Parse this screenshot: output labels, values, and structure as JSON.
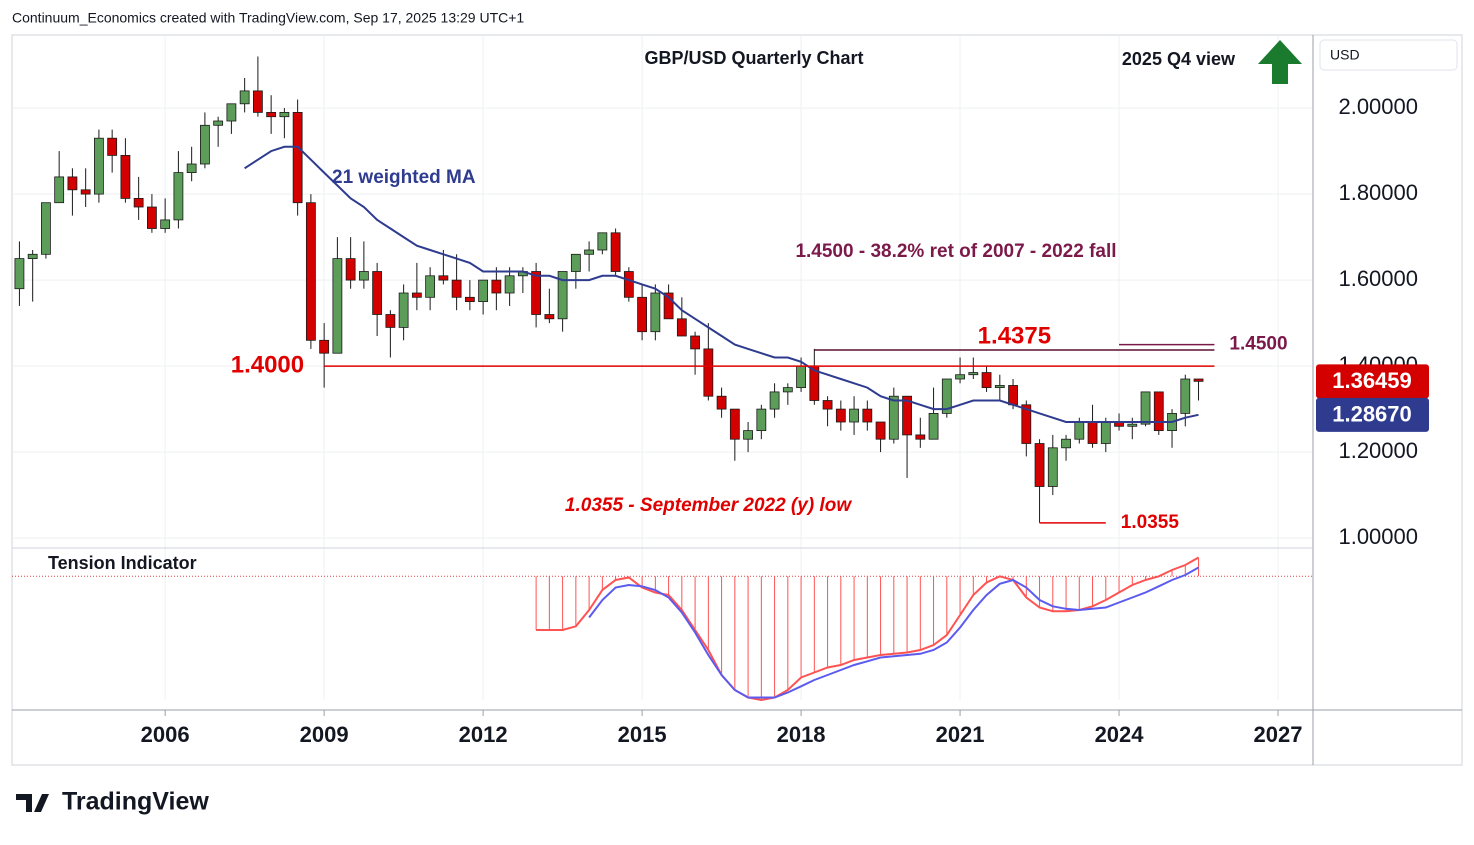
{
  "header": "Continuum_Economics created with TradingView.com, Sep 17, 2025 13:29 UTC+1",
  "brand": "TradingView",
  "chart_data": {
    "type": "candlestick",
    "title": "GBP/USD Quarterly Chart",
    "subtitle": "2025 Q4 view",
    "currency": "USD",
    "x": [
      2003.25,
      2003.5,
      2003.75,
      2004,
      2004.25,
      2004.5,
      2004.75,
      2005,
      2005.25,
      2005.5,
      2005.75,
      2006,
      2006.25,
      2006.5,
      2006.75,
      2007,
      2007.25,
      2007.5,
      2007.75,
      2008,
      2008.25,
      2008.5,
      2008.75,
      2009,
      2009.25,
      2009.5,
      2009.75,
      2010,
      2010.25,
      2010.5,
      2010.75,
      2011,
      2011.25,
      2011.5,
      2011.75,
      2012,
      2012.25,
      2012.5,
      2012.75,
      2013,
      2013.25,
      2013.5,
      2013.75,
      2014,
      2014.25,
      2014.5,
      2014.75,
      2015,
      2015.25,
      2015.5,
      2015.75,
      2016,
      2016.25,
      2016.5,
      2016.75,
      2017,
      2017.25,
      2017.5,
      2017.75,
      2018,
      2018.25,
      2018.5,
      2018.75,
      2019,
      2019.25,
      2019.5,
      2019.75,
      2020,
      2020.25,
      2020.5,
      2020.75,
      2021,
      2021.25,
      2021.5,
      2021.75,
      2022,
      2022.25,
      2022.5,
      2022.75,
      2023,
      2023.25,
      2023.5,
      2023.75,
      2024,
      2024.25,
      2024.5,
      2024.75,
      2025,
      2025.25,
      2025.5
    ],
    "open": [
      1.58,
      1.65,
      1.66,
      1.78,
      1.84,
      1.81,
      1.8,
      1.93,
      1.89,
      1.79,
      1.77,
      1.72,
      1.74,
      1.85,
      1.87,
      1.96,
      1.97,
      2.01,
      2.04,
      1.99,
      1.98,
      1.99,
      1.78,
      1.46,
      1.43,
      1.65,
      1.6,
      1.62,
      1.52,
      1.49,
      1.57,
      1.56,
      1.61,
      1.6,
      1.56,
      1.55,
      1.6,
      1.57,
      1.61,
      1.62,
      1.52,
      1.51,
      1.62,
      1.66,
      1.67,
      1.71,
      1.62,
      1.56,
      1.48,
      1.57,
      1.51,
      1.47,
      1.44,
      1.33,
      1.3,
      1.23,
      1.25,
      1.3,
      1.34,
      1.35,
      1.4,
      1.32,
      1.3,
      1.27,
      1.3,
      1.27,
      1.23,
      1.33,
      1.24,
      1.23,
      1.29,
      1.37,
      1.38,
      1.385,
      1.35,
      1.355,
      1.31,
      1.22,
      1.12,
      1.21,
      1.23,
      1.27,
      1.22,
      1.27,
      1.26,
      1.265,
      1.34,
      1.25,
      1.29,
      1.37
    ],
    "high": [
      1.69,
      1.67,
      1.78,
      1.9,
      1.86,
      1.86,
      1.95,
      1.95,
      1.93,
      1.84,
      1.8,
      1.79,
      1.9,
      1.91,
      1.99,
      1.98,
      2.01,
      2.07,
      2.12,
      2.03,
      2.0,
      2.02,
      1.8,
      1.5,
      1.7,
      1.7,
      1.69,
      1.64,
      1.53,
      1.59,
      1.64,
      1.63,
      1.67,
      1.66,
      1.6,
      1.6,
      1.63,
      1.63,
      1.63,
      1.64,
      1.58,
      1.62,
      1.66,
      1.69,
      1.71,
      1.72,
      1.63,
      1.59,
      1.59,
      1.59,
      1.56,
      1.48,
      1.5,
      1.35,
      1.3,
      1.27,
      1.31,
      1.36,
      1.36,
      1.42,
      1.44,
      1.33,
      1.32,
      1.33,
      1.32,
      1.27,
      1.35,
      1.33,
      1.28,
      1.35,
      1.37,
      1.42,
      1.42,
      1.4,
      1.38,
      1.37,
      1.32,
      1.23,
      1.24,
      1.24,
      1.28,
      1.31,
      1.28,
      1.29,
      1.28,
      1.34,
      1.34,
      1.3,
      1.38,
      1.37
    ],
    "low": [
      1.54,
      1.55,
      1.65,
      1.78,
      1.75,
      1.77,
      1.78,
      1.85,
      1.78,
      1.74,
      1.71,
      1.71,
      1.72,
      1.83,
      1.86,
      1.91,
      1.94,
      1.99,
      1.98,
      1.94,
      1.93,
      1.75,
      1.44,
      1.35,
      1.43,
      1.58,
      1.58,
      1.47,
      1.42,
      1.46,
      1.53,
      1.53,
      1.59,
      1.53,
      1.53,
      1.52,
      1.53,
      1.54,
      1.57,
      1.49,
      1.5,
      1.48,
      1.58,
      1.62,
      1.66,
      1.61,
      1.55,
      1.46,
      1.46,
      1.51,
      1.47,
      1.38,
      1.32,
      1.28,
      1.18,
      1.2,
      1.23,
      1.28,
      1.31,
      1.34,
      1.31,
      1.26,
      1.25,
      1.24,
      1.25,
      1.2,
      1.22,
      1.14,
      1.21,
      1.23,
      1.28,
      1.36,
      1.37,
      1.34,
      1.32,
      1.3,
      1.19,
      1.0355,
      1.1,
      1.18,
      1.22,
      1.21,
      1.2,
      1.25,
      1.23,
      1.26,
      1.24,
      1.21,
      1.26,
      1.32
    ],
    "close": [
      1.65,
      1.66,
      1.78,
      1.84,
      1.81,
      1.8,
      1.93,
      1.89,
      1.79,
      1.77,
      1.72,
      1.74,
      1.85,
      1.87,
      1.96,
      1.97,
      2.01,
      2.04,
      1.99,
      1.98,
      1.99,
      1.78,
      1.46,
      1.43,
      1.65,
      1.6,
      1.62,
      1.52,
      1.49,
      1.57,
      1.56,
      1.61,
      1.6,
      1.56,
      1.55,
      1.6,
      1.57,
      1.61,
      1.62,
      1.52,
      1.51,
      1.62,
      1.66,
      1.67,
      1.71,
      1.62,
      1.56,
      1.48,
      1.57,
      1.51,
      1.47,
      1.44,
      1.33,
      1.3,
      1.23,
      1.25,
      1.3,
      1.34,
      1.35,
      1.4,
      1.32,
      1.3,
      1.27,
      1.3,
      1.27,
      1.23,
      1.33,
      1.24,
      1.23,
      1.29,
      1.37,
      1.38,
      1.385,
      1.35,
      1.355,
      1.31,
      1.22,
      1.12,
      1.21,
      1.23,
      1.27,
      1.22,
      1.27,
      1.26,
      1.265,
      1.34,
      1.25,
      1.29,
      1.37,
      1.36459
    ],
    "last_label": "1.36459",
    "up_color": "#5d9d5a",
    "down_color": "#d40000",
    "ma": {
      "name": "21 weighted MA",
      "color": "#2e3b8f",
      "last_label": "1.28670",
      "values": [
        null,
        null,
        null,
        null,
        null,
        null,
        null,
        null,
        null,
        null,
        null,
        null,
        null,
        null,
        null,
        null,
        null,
        1.86,
        1.88,
        1.9,
        1.91,
        1.91,
        1.88,
        1.85,
        1.82,
        1.79,
        1.77,
        1.74,
        1.72,
        1.7,
        1.68,
        1.67,
        1.66,
        1.65,
        1.64,
        1.62,
        1.62,
        1.62,
        1.62,
        1.61,
        1.61,
        1.6,
        1.6,
        1.6,
        1.61,
        1.61,
        1.6,
        1.59,
        1.58,
        1.56,
        1.53,
        1.51,
        1.49,
        1.47,
        1.45,
        1.44,
        1.43,
        1.42,
        1.42,
        1.41,
        1.39,
        1.38,
        1.37,
        1.36,
        1.35,
        1.33,
        1.32,
        1.32,
        1.31,
        1.3,
        1.3,
        1.31,
        1.32,
        1.32,
        1.32,
        1.31,
        1.3,
        1.29,
        1.28,
        1.27,
        1.27,
        1.27,
        1.27,
        1.27,
        1.27,
        1.27,
        1.27,
        1.27,
        1.28,
        1.2867
      ]
    },
    "levels": [
      {
        "value": 1.4,
        "label": "1.4000",
        "x": [
          2009,
          2025.8
        ],
        "color": "#e00000",
        "label_position": "left"
      },
      {
        "value": 1.4375,
        "label": "1.4375",
        "x": [
          2018.25,
          2025.8
        ],
        "color": "#5a1030",
        "label_position": "above"
      },
      {
        "value": 1.45,
        "label": "1.4500",
        "x": [
          2024,
          2025.8
        ],
        "color": "#7b1a4a",
        "label_position": "right"
      },
      {
        "value": 1.0355,
        "label": "1.0355",
        "x": [
          2022.5,
          2023.75
        ],
        "color": "#e00000",
        "label_position": "right"
      }
    ],
    "annotations": [
      "21 weighted MA",
      "1.4500 - 38.2% ret of 2007 - 2022 fall",
      "1.0355 - September 2022 (y) low"
    ],
    "xlim": [
      2003.11,
      2027.66
    ],
    "xticks": [
      2006,
      2009,
      2012,
      2015,
      2018,
      2021,
      2024,
      2027
    ],
    "ylim": [
      0.977,
      2.17
    ],
    "yticks": [
      {
        "value": 1.0,
        "label": "1.00000"
      },
      {
        "value": 1.2,
        "label": "1.20000"
      },
      {
        "value": 1.4,
        "label": "1.40000"
      },
      {
        "value": 1.6,
        "label": "1.60000"
      },
      {
        "value": 1.8,
        "label": "1.80000"
      },
      {
        "value": 2.0,
        "label": "2.00000"
      }
    ],
    "grid": true,
    "indicator": {
      "title": "Tension Indicator",
      "ylim": [
        0,
        120
      ],
      "reference": 99,
      "series": [
        {
          "color": "#ff5252",
          "values": [
            null,
            null,
            null,
            null,
            null,
            null,
            null,
            null,
            null,
            null,
            null,
            null,
            null,
            null,
            null,
            null,
            null,
            null,
            null,
            null,
            null,
            null,
            null,
            null,
            null,
            null,
            null,
            null,
            null,
            null,
            null,
            null,
            null,
            null,
            null,
            null,
            null,
            null,
            null,
            56,
            56,
            56,
            59,
            72,
            88,
            96,
            98,
            90,
            86,
            84,
            72,
            56,
            40,
            20,
            8,
            2,
            0,
            2,
            8,
            18,
            22,
            26,
            28,
            32,
            34,
            36,
            37,
            38,
            40,
            44,
            52,
            68,
            84,
            94,
            99,
            96,
            82,
            74,
            71,
            71,
            72,
            75,
            80,
            86,
            92,
            96,
            99,
            104,
            108,
            114
          ]
        },
        {
          "color": "#5b5bf0",
          "values": [
            null,
            null,
            null,
            null,
            null,
            null,
            null,
            null,
            null,
            null,
            null,
            null,
            null,
            null,
            null,
            null,
            null,
            null,
            null,
            null,
            null,
            null,
            null,
            null,
            null,
            null,
            null,
            null,
            null,
            null,
            null,
            null,
            null,
            null,
            null,
            null,
            null,
            null,
            null,
            null,
            null,
            null,
            null,
            66,
            80,
            90,
            92,
            91,
            88,
            82,
            70,
            54,
            36,
            20,
            8,
            2,
            2,
            2,
            6,
            11,
            16,
            20,
            24,
            28,
            31,
            34,
            35,
            36,
            37,
            40,
            46,
            58,
            72,
            84,
            93,
            96,
            90,
            80,
            75,
            73,
            72,
            73,
            74,
            78,
            82,
            86,
            91,
            96,
            100,
            106
          ]
        }
      ]
    }
  }
}
